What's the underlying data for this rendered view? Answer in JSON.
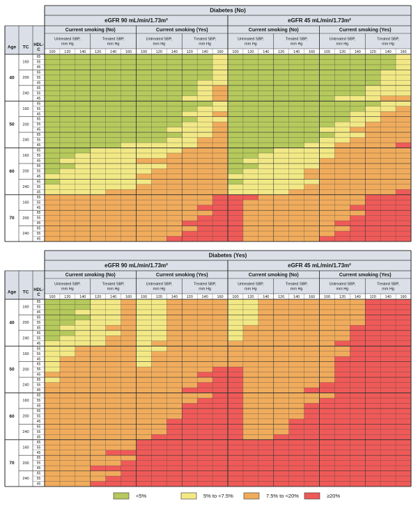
{
  "chart_data": {
    "type": "heatmap",
    "colors": {
      "lt5": "#b5c95c",
      "5to7_5": "#f2e986",
      "7_5to20": "#f0ac5c",
      "ge20": "#ef5a58",
      "header_fill": "#dbe0e8",
      "line": "#333333"
    },
    "legend": [
      {
        "code": "lt5",
        "label": "<5%"
      },
      {
        "code": "5to7_5",
        "label": "5% to <7.5%"
      },
      {
        "code": "7_5to20",
        "label": "7.5% to <20%"
      },
      {
        "code": "ge20",
        "label": "≥20%"
      }
    ],
    "row_header": {
      "age": "Age",
      "tc": "TC",
      "hdl": "HDL-\nC"
    },
    "ages": [
      "40",
      "50",
      "60",
      "70"
    ],
    "tc_values": [
      "160",
      "200",
      "240"
    ],
    "hdl_values": [
      "65",
      "55",
      "45"
    ],
    "egfr_labels": [
      "eGFR 90 mL/min/1.73m²",
      "eGFR 45 mL/min/1.73m²"
    ],
    "smoking_labels": [
      "Current smoking (No)",
      "Current smoking (Yes)"
    ],
    "sbp_labels": [
      "Untreated SBP,\nmm Hg",
      "Treated SBP,\nmm Hg"
    ],
    "sbp_untreated": [
      "100",
      "120",
      "140"
    ],
    "sbp_treated": [
      "120",
      "140",
      "160"
    ],
    "panels": [
      {
        "title": "Diabetes (No)",
        "grid": [
          "GGGGGGGGGGGYGGGGGGGGGGGY",
          "GGGGGGGGGGGYGGGGGGGGGGGY",
          "GGGGGGGGGGGYGGGGGGGGGGGY",
          "GGGGGGGGGGGYGGGGGGGGGGYY",
          "GGGGGGGGGGGYGGGGGGGGGGYY",
          "GGGGGGGGGGYYGGGGGGGGGGYY",
          "GGGGGGGGGGYOGGGGGGGGGYYY",
          "GGGGGGGGGGYOGGGGGGGGGYYY",
          "GGGGGGGGGYYOGGGGGGGYYYOO",
          "GGGGGGGGGGGYGGGGGGGGGGYY",
          "GGGGGGGGGGYYGGGGGGGGGYYO",
          "GGGGGGGGGYYOGGGGGGGGYYOO",
          "GGGGGGGGGGYYGGGGGGGGYYOO",
          "GGGGGGGGGYYOGGGGGGGYYOOO",
          "GGGGGGGGYYYOGGGGGGYYOOOO",
          "GGGGGGGGGYYOGGGGGGGYYOOO",
          "GGGGGGGGYYOOGGGGGGYYOOOO",
          "GGGGGYYYYYOOGGGGGYYOOOOR",
          "GGGYYYYYYOOOGGGYYYYOOOOO",
          "GGYYYYYYOOOOGGYYYYYOOOOO",
          "GYYYYYOOOOOOGYYYYYOOOOOO",
          "GGYYYYYYOOOOGGYYYYOOOOOO",
          "GYYYYYYOOOOOGYYYYOOOOOOO",
          "YYYYYYOOOOOOYYYYYOOOOOOO",
          "GYYYYYYOOOOOGYYYYYOOOOOO",
          "YYYYYYOOOOOOYYYYYOOOOOOO",
          "YYYYOOOOOOOOYYYYOOOOOOOR",
          "OOOOOOOOOOORRROOOOOOORRR",
          "OOOOOOOOOOORROOOOOOOORRR",
          "OOOOOOOOOORRROOOOOOORRRR",
          "OOOOOOOOOOORROOOOOOOORRR",
          "OOOOOOOOOORRROOOOOOORRRR",
          "OOOOOOOOORRRROOOOOORRRRR",
          "OOOOOOOOOORRROOOOOOORRRR",
          "OOOOOOOOORRRROOOOOORRRRR",
          "OOOOOOOORRRRROOOOORRRRRR"
        ]
      },
      {
        "title": "Diabetes (Yes)",
        "grid": [
          "GGGYYOYYOOOOYYOOOOOOORRR",
          "GGGYYOYYOOOOYYOOOOOOORRR",
          "GGYYYOYYOOOOYYOOOOOOORRR",
          "GGGYYOYYOOOOYYOOOOOOORRR",
          "GGYYYOYYOOOOYYOOOOOOORRR",
          "GYYYOOYYOOOOYOOOOOOORRRR",
          "GGYYYOYYOOOOYOOOOOOORRRR",
          "GYYYOOYYOOOOYOOOOOOORRRR",
          "YYYYOOYOOOOOOOOOOOORRRRR",
          "YYOOOOYYOOOOOOOOOOOORRRR",
          "YYOOOOYOOOOOOOOOOOOORRRR",
          "YOOOOOYOOOOOOOOOOOORRRRR",
          "YOOOOOYOOOOOOOOOOOORRRRR",
          "YOOOOOOOOOORROOOOOORRRRR",
          "OOOOOOOOOORRROOOOOORRRRR",
          "YOOOOOOOOOORROOOOOORRRRR",
          "OOOOOOOOOORRROOOOORRRRRR",
          "OOOOOOOOORRRROOOORRRRRRR",
          "OOOOOOOOOOORROOOOOORRRRR",
          "OOOOOOOOOORRROOOOORRRRRR",
          "OOOOOOOOORRRROOOORRRRRRR",
          "OOOOOOOOORRRROOOORRRRRRR",
          "OOOOOOOOORRRROOOORRRRRRR",
          "OOOOOOOORRRRROOORRRRRRRR",
          "OOOOOOOORRRRROOORRRRRRRR",
          "OOOOOOOORRRRROOORRRRRRRR",
          "OOOOOOORRRRRROORRRRRRRRR",
          "OOOOOORRRRRRRRRRRRRRRRRR",
          "OOOOOORRRRRRRRRRRRRRRRRR",
          "OOOORRRRRRRRRRRRRRRRRRRR",
          "OOOOOORRRRRRRRRRRRRRRRRR",
          "OOOOORRRRRRRRRRRRRRRRRRR",
          "OOORRRRRRRRRRRRRRRRRRRRR",
          "OOOOORRRRRRRRRRRRRRRRRRR",
          "OOOORRRRRRRRRRRRRRRRRRRR",
          "OOORRRRRRRRRRRRRRRRRRRRR"
        ]
      }
    ]
  }
}
